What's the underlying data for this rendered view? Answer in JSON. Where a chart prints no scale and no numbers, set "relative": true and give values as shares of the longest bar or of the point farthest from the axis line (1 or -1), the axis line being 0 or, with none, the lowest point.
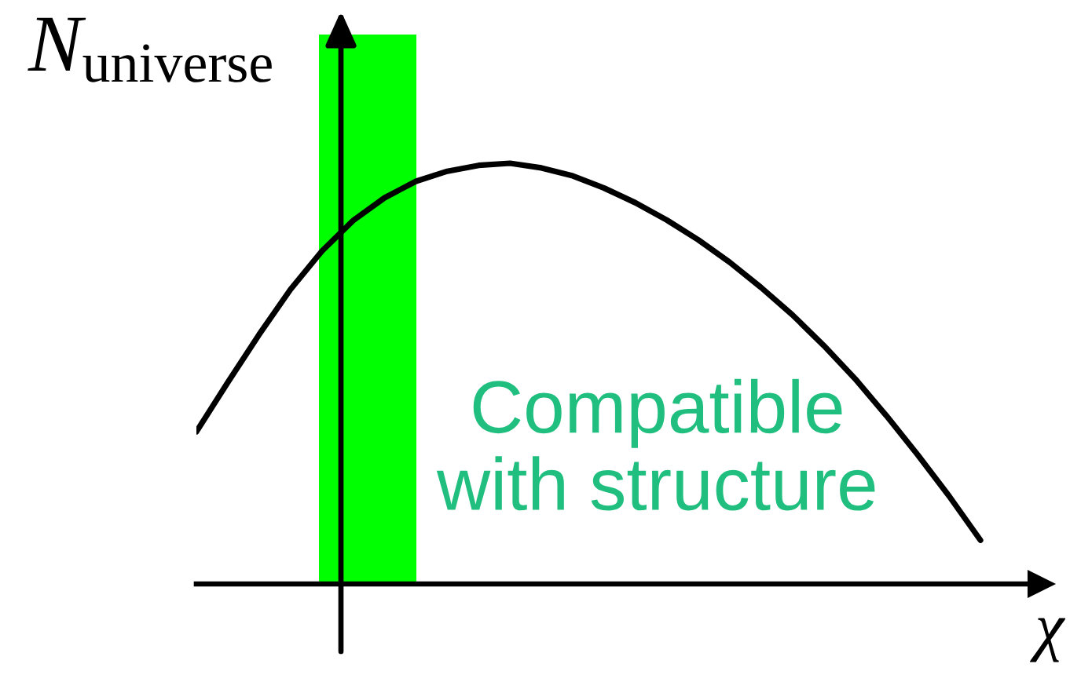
{
  "chart_data": {
    "type": "line",
    "ylabel": "N$_{universe}$",
    "xlabel": "χ",
    "relative": true,
    "categories": [
      null,
      null,
      null,
      null,
      null,
      null,
      null,
      null,
      null,
      null,
      null,
      null,
      null,
      null,
      null,
      null,
      null,
      null,
      null,
      null,
      null,
      null,
      null,
      null,
      null,
      null
    ],
    "values": [
      0.362,
      0.479,
      0.593,
      0.7,
      0.791,
      0.864,
      0.918,
      0.957,
      0.981,
      0.995,
      1.0,
      0.989,
      0.97,
      0.941,
      0.906,
      0.865,
      0.818,
      0.765,
      0.705,
      0.64,
      0.567,
      0.488,
      0.4,
      0.307,
      0.209,
      0.104
    ],
    "color": "#000000",
    "annotations": [
      "Compatible\nwith structure"
    ]
  }
}
